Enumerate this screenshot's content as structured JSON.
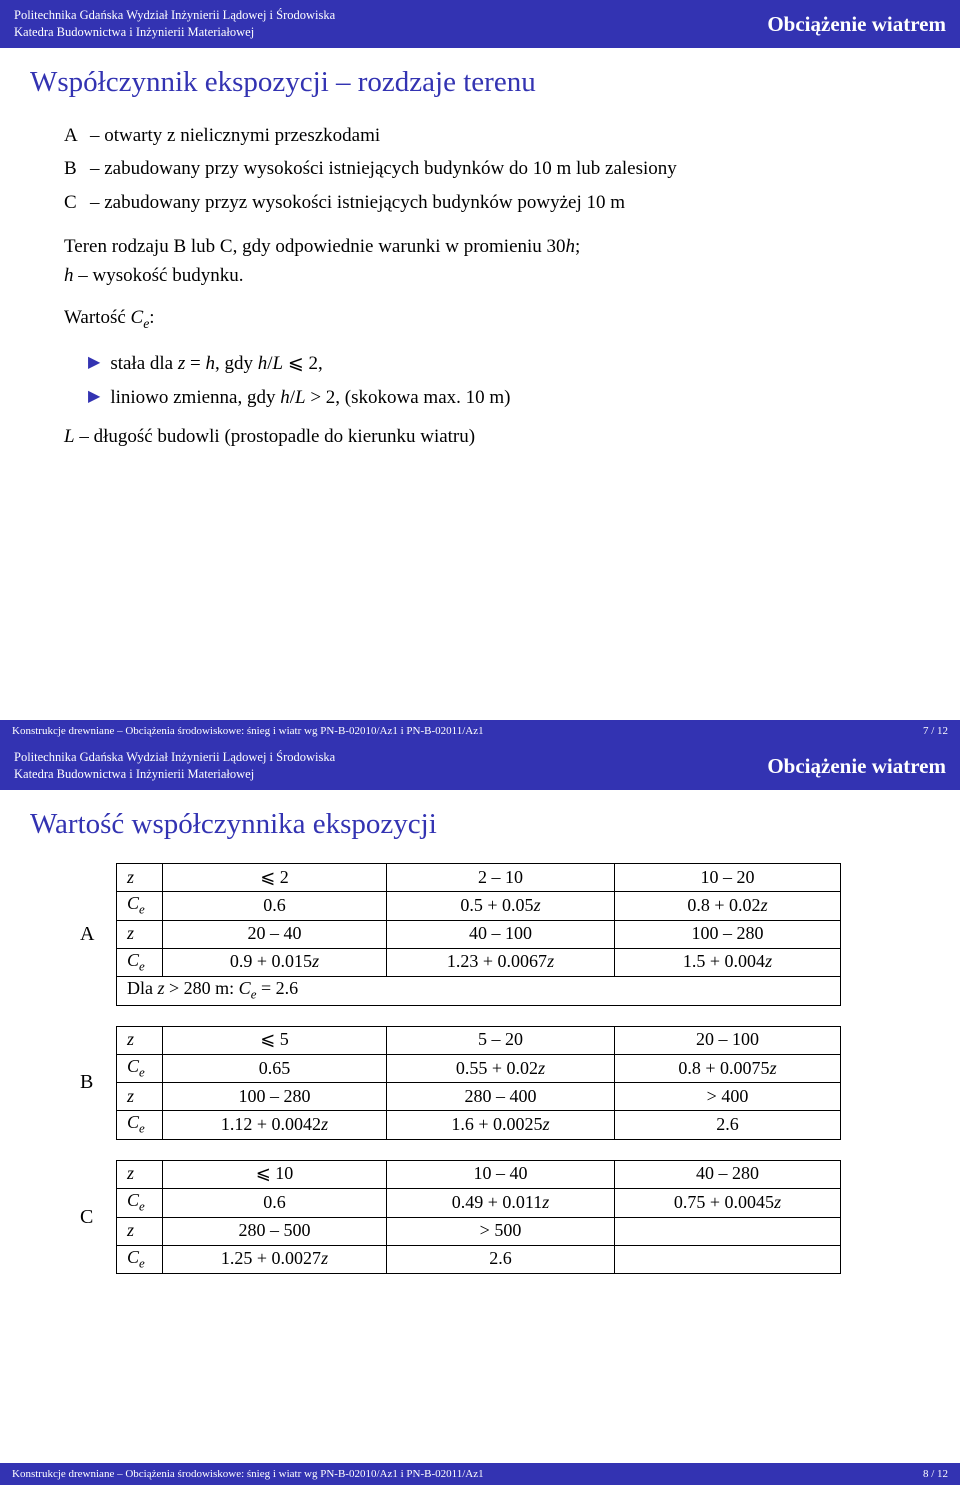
{
  "header": {
    "line1": "Politechnika Gdańska Wydział Inżynierii Lądowej i Środowiska",
    "line2": "Katedra Budownictwa i Inżynierii Materiałowej",
    "right": "Obciążenie wiatrem"
  },
  "slide1": {
    "title": "Współczynnik ekspozycji – rozdzaje terenu",
    "defs": [
      {
        "label": "A",
        "text": "otwarty z nielicznymi przeszkodami"
      },
      {
        "label": "B",
        "text": "zabudowany przy wysokości istniejących budynków do 10 m lub zalesiony"
      },
      {
        "label": "C",
        "text": "zabudowany przyz wysokości istniejących budynków powyżej 10 m"
      }
    ],
    "para1_pre": "Teren rodzaju B lub C, gdy odpowiednie warunki w promieniu 30",
    "para1_h": "h",
    "para1_post": ";",
    "para1_line2_h": "h",
    "para1_line2_text": " – wysokość budynku.",
    "para2_pre": "Wartość ",
    "para2_C": "C",
    "para2_e": "e",
    "para2_post": ":",
    "bullets": [
      "stała dla <span class=\"ital\">z</span> = <span class=\"ital\">h</span>, gdy <span class=\"ital\">h</span>/<span class=\"ital\">L</span> ⩽ 2,",
      "liniowo zmienna, gdy <span class=\"ital\">h</span>/<span class=\"ital\">L</span> > 2, (skokowa max. 10 m)"
    ],
    "para3": "<span class=\"ital\">L</span> – długość budowli (prostopadle do kierunku wiatru)",
    "footer_left": "Konstrukcje drewniane – Obciążenia środowiskowe: śnieg i wiatr wg PN-B-02010/Az1 i PN-B-02011/Az1",
    "footer_right": "7 / 12"
  },
  "slide2": {
    "title": "Wartość współczynnika ekspozycji",
    "tables": [
      {
        "label": "A",
        "note": "Dla <span class=\"ital\">z</span> > 280 m: <span class=\"ital\">C<span class=\"sub\">e</span></span> = 2.6",
        "rows": [
          [
            "⩽ 2",
            "2 – 10",
            "10 – 20"
          ],
          [
            "0.6",
            "0.5 + 0.05<span class=\"ital\">z</span>",
            "0.8 + 0.02<span class=\"ital\">z</span>"
          ],
          [
            "20 – 40",
            "40 – 100",
            "100 – 280"
          ],
          [
            "0.9 + 0.015<span class=\"ital\">z</span>",
            "1.23 + 0.0067<span class=\"ital\">z</span>",
            "1.5 + 0.004<span class=\"ital\">z</span>"
          ]
        ]
      },
      {
        "label": "B",
        "rows": [
          [
            "⩽ 5",
            "5 – 20",
            "20 – 100"
          ],
          [
            "0.65",
            "0.55 + 0.02<span class=\"ital\">z</span>",
            "0.8 + 0.0075<span class=\"ital\">z</span>"
          ],
          [
            "100 – 280",
            "280 – 400",
            "> 400"
          ],
          [
            "1.12 + 0.0042<span class=\"ital\">z</span>",
            "1.6 + 0.0025<span class=\"ital\">z</span>",
            "2.6"
          ]
        ]
      },
      {
        "label": "C",
        "rows": [
          [
            "⩽ 10",
            "10 – 40",
            "40 – 280"
          ],
          [
            "0.6",
            "0.49 + 0.011<span class=\"ital\">z</span>",
            "0.75 + 0.0045<span class=\"ital\">z</span>"
          ],
          [
            "280 – 500",
            "> 500",
            ""
          ],
          [
            "1.25 + 0.0027<span class=\"ital\">z</span>",
            "2.6",
            ""
          ]
        ]
      }
    ],
    "row_headers": [
      "z",
      "C<span class=\"sub\">e</span>",
      "z",
      "C<span class=\"sub\">e</span>"
    ],
    "footer_left": "Konstrukcje drewniane – Obciążenia środowiskowe: śnieg i wiatr wg PN-B-02010/Az1 i PN-B-02011/Az1",
    "footer_right": "8 / 12"
  },
  "colors": {
    "header_bg": "#3333b2",
    "header_fg": "#ffffff",
    "title_color": "#3333b2",
    "body_bg": "#ffffff",
    "text": "#000000",
    "bullet": "#3333b2",
    "table_border": "#000000"
  }
}
